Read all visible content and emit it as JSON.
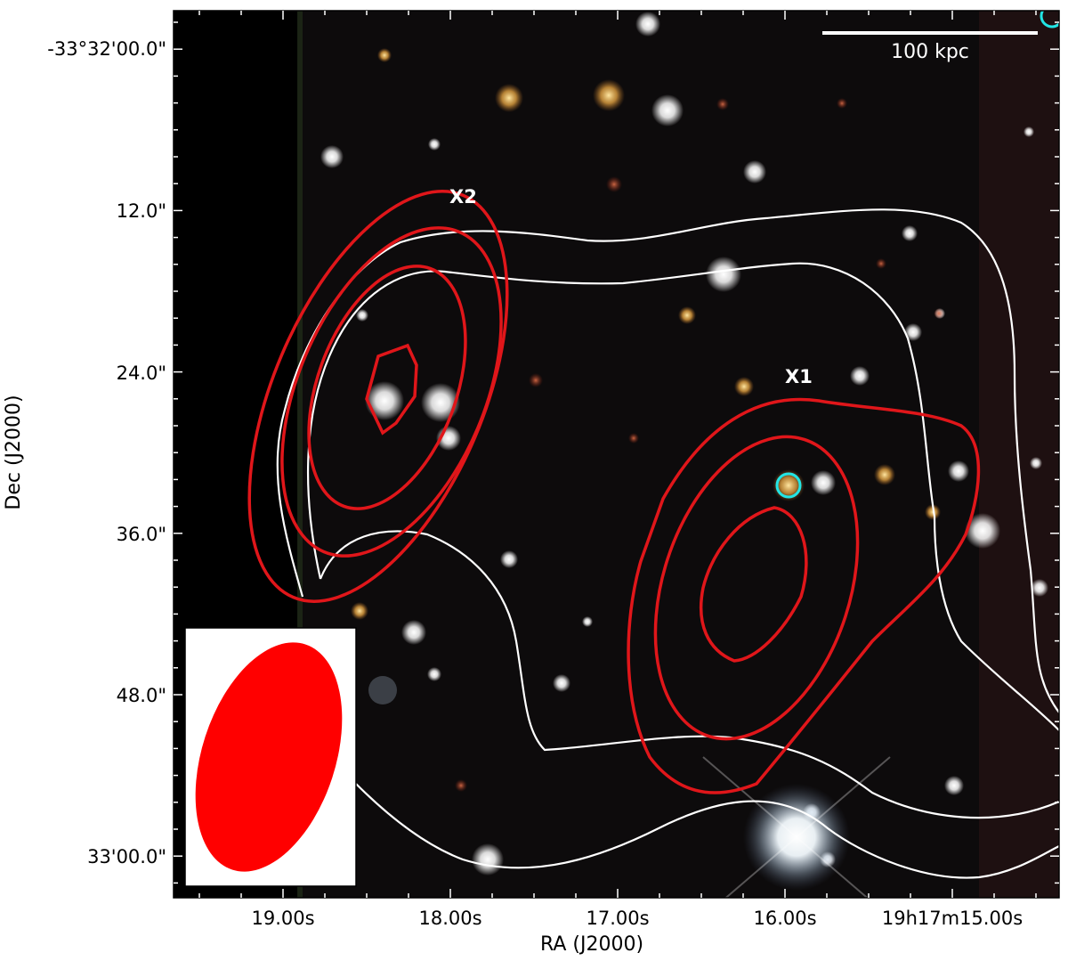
{
  "figure": {
    "axes": {
      "xlabel": "RA (J2000)",
      "ylabel": "Dec (J2000)",
      "x_ticks": [
        "19.00s",
        "18.00s",
        "17.00s",
        "16.00s",
        "19h17m15.00s"
      ],
      "y_ticks": [
        "-33°32'00.0\"",
        "12.0\"",
        "24.0\"",
        "36.0\"",
        "48.0\"",
        "33'00.0\""
      ]
    },
    "scale_bar": {
      "label": "100 kpc"
    },
    "markers": [
      {
        "label": "X1"
      },
      {
        "label": "X2"
      }
    ],
    "colors": {
      "background_sky": "#0d0b0c",
      "masked_strip": "#000000",
      "red_contours": "#e0161a",
      "white_contours": "#ffffff",
      "cyan_marker": "#22e5e5",
      "beam_ellipse": "#ff0000"
    }
  }
}
